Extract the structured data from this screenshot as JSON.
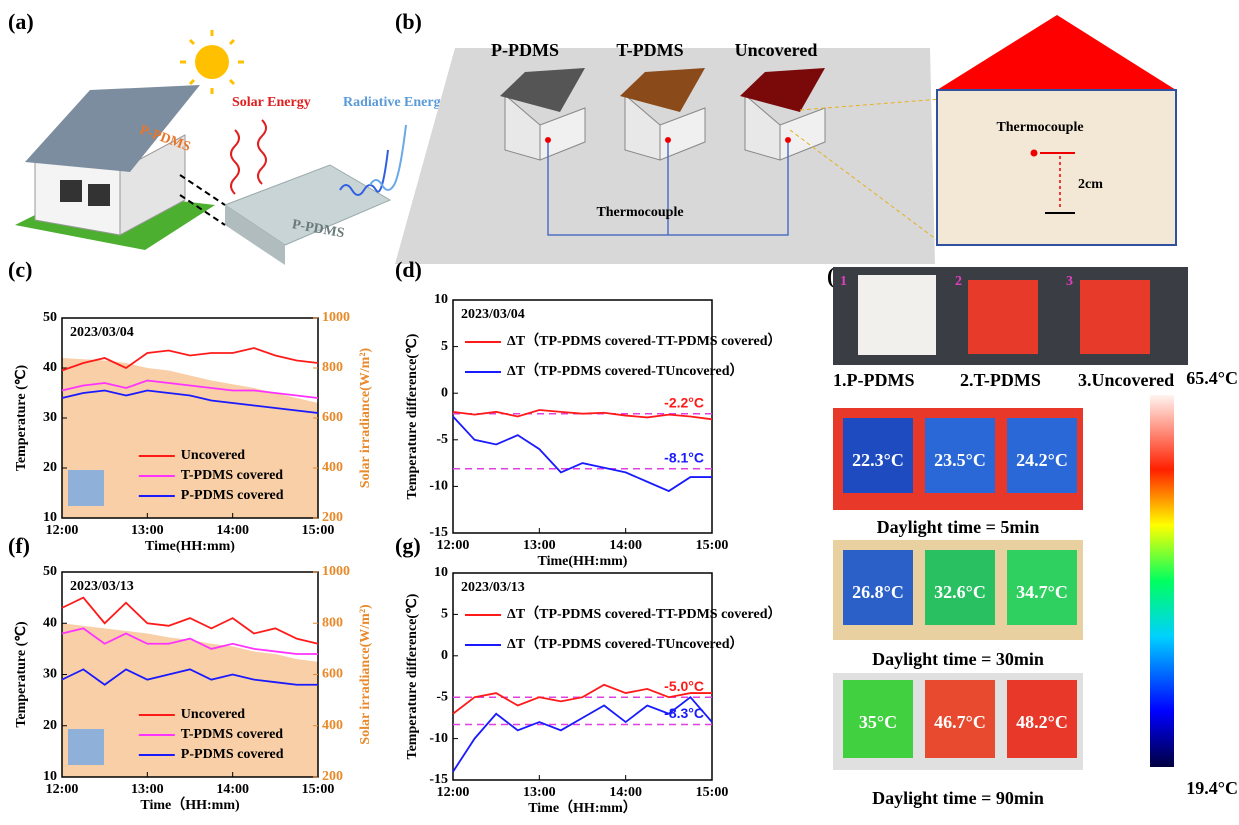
{
  "panel_a": {
    "label": "(a)",
    "solar": "Solar Energy",
    "radiative": "Radiative Energy",
    "roof": "P-PDMS",
    "slab": "P-PDMS"
  },
  "panel_b": {
    "label": "(b)",
    "houses": [
      "P-PDMS",
      "T-PDMS",
      "Uncovered"
    ],
    "sensor": "Thermocouple",
    "detail_sensor": "Thermocouple",
    "height": "2cm"
  },
  "panel_e": {
    "label": "(e)",
    "numbers": [
      "1",
      "2",
      "3"
    ],
    "photo_labels": [
      "1.P-PDMS",
      "2.T-PDMS",
      "3.Uncovered"
    ],
    "rows": [
      {
        "temps": [
          "22.3°C",
          "23.5°C",
          "24.2°C"
        ],
        "caption": "Daylight time = 5min"
      },
      {
        "temps": [
          "26.8°C",
          "32.6°C",
          "34.7°C"
        ],
        "caption": "Daylight time = 30min"
      },
      {
        "temps": [
          "35°C",
          "46.7°C",
          "48.2°C"
        ],
        "caption": "Daylight time = 90min"
      }
    ],
    "colorbar": {
      "max": "65.4°C",
      "min": "19.4°C"
    }
  },
  "chart_data": [
    {
      "type": "line",
      "panel": "(c)",
      "date": "2023/03/04",
      "x_label": "Time(HH:mm)",
      "y_label": "Temperature (℃)",
      "y2_label": "Solar irradiance(W/m²)",
      "x": [
        12,
        12.25,
        12.5,
        12.75,
        13,
        13.25,
        13.5,
        13.75,
        14,
        14.25,
        14.5,
        14.75,
        15
      ],
      "xlim": [
        12,
        15
      ],
      "xticks": [
        {
          "value": 12,
          "label": "12:00"
        },
        {
          "value": 13,
          "label": "13:00"
        },
        {
          "value": 14,
          "label": "14:00"
        },
        {
          "value": 15,
          "label": "15:00"
        }
      ],
      "ylim": [
        10,
        50
      ],
      "yticks": [
        10,
        20,
        30,
        40,
        50
      ],
      "y2lim": [
        200,
        1000
      ],
      "y2ticks": [
        200,
        400,
        600,
        800,
        1000
      ],
      "grid": false,
      "legend": "lower center",
      "area": {
        "color": "#f8cfa6",
        "axis": "y2",
        "values": [
          840,
          835,
          830,
          820,
          800,
          790,
          770,
          750,
          735,
          720,
          700,
          680,
          660
        ]
      },
      "series": [
        {
          "name": "Uncovered",
          "color": "#ff1a1a",
          "values": [
            39.5,
            41,
            42,
            40,
            43,
            43.5,
            42.5,
            43,
            43,
            44,
            42.5,
            41.5,
            41
          ]
        },
        {
          "name": "T-PDMS covered",
          "color": "#ff33ff",
          "values": [
            35.5,
            36.5,
            37,
            36,
            37.5,
            37,
            36.5,
            36,
            35.5,
            35.5,
            35,
            34.5,
            34
          ]
        },
        {
          "name": "P-PDMS covered",
          "color": "#1a1aff",
          "values": [
            34,
            35,
            35.5,
            34.5,
            35.5,
            35,
            34.5,
            33.5,
            33,
            32.5,
            32,
            31.5,
            31
          ]
        }
      ]
    },
    {
      "type": "line",
      "panel": "(d)",
      "date": "2023/03/04",
      "x_label": "Time(HH:mm)",
      "y_label": "Temperature difference(℃)",
      "x": [
        12,
        12.25,
        12.5,
        12.75,
        13,
        13.25,
        13.5,
        13.75,
        14,
        14.25,
        14.5,
        14.75,
        15
      ],
      "xlim": [
        12,
        15
      ],
      "xticks": [
        {
          "value": 12,
          "label": "12:00"
        },
        {
          "value": 13,
          "label": "13:00"
        },
        {
          "value": 14,
          "label": "14:00"
        },
        {
          "value": 15,
          "label": "15:00"
        }
      ],
      "ylim": [
        -15,
        10
      ],
      "yticks": [
        -15,
        -10,
        -5,
        0,
        5,
        10
      ],
      "grid": false,
      "legend": "upper left",
      "reference_lines": [
        {
          "value": -2.2,
          "label": "-2.2°C",
          "color": "#ff1a1a"
        },
        {
          "value": -8.1,
          "label": "-8.1°C",
          "color": "#1a1aff"
        }
      ],
      "series": [
        {
          "name": "ΔT（TP-PDMS covered-TT-PDMS covered）",
          "color": "#ff1a1a",
          "values": [
            -2,
            -2.3,
            -2,
            -2.5,
            -1.8,
            -2,
            -2.2,
            -2.1,
            -2.4,
            -2.6,
            -2.3,
            -2.5,
            -2.8
          ]
        },
        {
          "name": "ΔT（TP-PDMS covered-TUncovered）",
          "color": "#1a1aff",
          "values": [
            -2.5,
            -5,
            -5.5,
            -4.5,
            -6,
            -8.5,
            -7.5,
            -8,
            -8.5,
            -9.5,
            -10.5,
            -9,
            -9
          ]
        }
      ]
    },
    {
      "type": "line",
      "panel": "(f)",
      "date": "2023/03/13",
      "x_label": "Time（HH:mm)",
      "y_label": "Temperature (℃)",
      "y2_label": "Solar irradiance(W/m²)",
      "x": [
        12,
        12.25,
        12.5,
        12.75,
        13,
        13.25,
        13.5,
        13.75,
        14,
        14.25,
        14.5,
        14.75,
        15
      ],
      "xlim": [
        12,
        15
      ],
      "xticks": [
        {
          "value": 12,
          "label": "12:00"
        },
        {
          "value": 13,
          "label": "13:00"
        },
        {
          "value": 14,
          "label": "14:00"
        },
        {
          "value": 15,
          "label": "15:00"
        }
      ],
      "ylim": [
        10,
        50
      ],
      "yticks": [
        10,
        20,
        30,
        40,
        50
      ],
      "y2lim": [
        200,
        1000
      ],
      "y2ticks": [
        200,
        400,
        600,
        800,
        1000
      ],
      "grid": false,
      "legend": "lower center",
      "area": {
        "color": "#f8cfa6",
        "axis": "y2",
        "values": [
          800,
          790,
          780,
          770,
          760,
          745,
          735,
          720,
          710,
          690,
          680,
          660,
          650
        ]
      },
      "series": [
        {
          "name": "Uncovered",
          "color": "#ff1a1a",
          "values": [
            43,
            45,
            40,
            44,
            40,
            39.5,
            41,
            39,
            41,
            38,
            39,
            37,
            36
          ]
        },
        {
          "name": "T-PDMS covered",
          "color": "#ff33ff",
          "values": [
            38,
            39,
            36,
            38,
            36,
            36,
            37,
            35,
            36,
            35,
            34.5,
            34,
            34
          ]
        },
        {
          "name": "P-PDMS covered",
          "color": "#1a1aff",
          "values": [
            29,
            31,
            28,
            31,
            29,
            30,
            31,
            29,
            30,
            29,
            28.5,
            28,
            28
          ]
        }
      ]
    },
    {
      "type": "line",
      "panel": "(g)",
      "date": "2023/03/13",
      "x_label": "Time（HH:mm）",
      "y_label": "Temperature difference(℃)",
      "x": [
        12,
        12.25,
        12.5,
        12.75,
        13,
        13.25,
        13.5,
        13.75,
        14,
        14.25,
        14.5,
        14.75,
        15
      ],
      "xlim": [
        12,
        15
      ],
      "xticks": [
        {
          "value": 12,
          "label": "12:00"
        },
        {
          "value": 13,
          "label": "13:00"
        },
        {
          "value": 14,
          "label": "14:00"
        },
        {
          "value": 15,
          "label": "15:00"
        }
      ],
      "ylim": [
        -15,
        10
      ],
      "yticks": [
        -15,
        -10,
        -5,
        0,
        5,
        10
      ],
      "grid": false,
      "legend": "upper left",
      "reference_lines": [
        {
          "value": -5.0,
          "label": "-5.0°C",
          "color": "#ff1a1a"
        },
        {
          "value": -8.3,
          "label": "-8.3°C",
          "color": "#1a1aff"
        }
      ],
      "series": [
        {
          "name": "ΔT（TP-PDMS covered-TT-PDMS covered）",
          "color": "#ff1a1a",
          "values": [
            -7,
            -5,
            -4.5,
            -6,
            -5,
            -5.5,
            -5,
            -3.5,
            -4.5,
            -4,
            -5,
            -4.5,
            -4.5
          ]
        },
        {
          "name": "ΔT（TP-PDMS covered-TUncovered）",
          "color": "#1a1aff",
          "values": [
            -14,
            -10,
            -7,
            -9,
            -8,
            -9,
            -7.5,
            -6,
            -8,
            -6,
            -7,
            -5,
            -8
          ]
        }
      ]
    }
  ]
}
